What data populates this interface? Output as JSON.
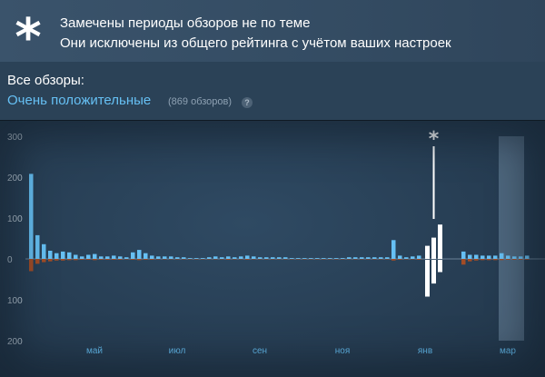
{
  "notice": {
    "icon": "asterisk-icon",
    "line1": "Замечены периоды обзоров не по теме",
    "line2": "Они исключены из общего рейтинга с учётом ваших настроек"
  },
  "summary": {
    "label": "Все обзоры:",
    "score": "Очень положительные",
    "count": "(869 обзоров)",
    "help": "?"
  },
  "colors": {
    "positive": "#66c0f4",
    "negative": "#a34c25",
    "offtopic": "#ffffff",
    "highlight": "#7e9ab1"
  },
  "chart_data": {
    "type": "bar",
    "y_tick_labels": [
      "300",
      "200",
      "100",
      "0",
      "100",
      "200"
    ],
    "y_ticks": [
      300,
      200,
      100,
      0,
      -100,
      -200
    ],
    "ylim": [
      -200,
      300
    ],
    "x_tick_labels": [
      "май",
      "июл",
      "сен",
      "ноя",
      "янв",
      "мар"
    ],
    "x_tick_positions": [
      10,
      23,
      36,
      49,
      62,
      75
    ],
    "annotation": "*",
    "series": [
      {
        "role": "positive",
        "values": [
          208,
          58,
          36,
          20,
          14,
          18,
          16,
          10,
          6,
          10,
          12,
          6,
          6,
          8,
          6,
          4,
          16,
          22,
          14,
          8,
          6,
          6,
          6,
          4,
          4,
          2,
          2,
          2,
          4,
          6,
          4,
          6,
          4,
          6,
          8,
          6,
          4,
          4,
          4,
          4,
          4,
          2,
          2,
          2,
          2,
          2,
          2,
          2,
          2,
          2,
          4,
          4,
          4,
          4,
          4,
          4,
          4,
          46,
          8,
          4,
          6,
          8,
          0,
          0,
          0,
          0,
          0,
          0,
          18,
          10,
          10,
          8,
          8,
          8,
          14,
          8,
          6,
          6,
          8
        ]
      },
      {
        "role": "negative",
        "values": [
          -30,
          -12,
          -8,
          -6,
          -4,
          -4,
          -3,
          -3,
          -2,
          -2,
          -3,
          -2,
          -2,
          -2,
          -2,
          -1,
          -2,
          -3,
          -2,
          -2,
          -1,
          -1,
          -1,
          -1,
          -1,
          -1,
          -1,
          -1,
          -1,
          -1,
          -1,
          -2,
          -1,
          -1,
          -2,
          -1,
          -1,
          -1,
          -1,
          -1,
          -1,
          -1,
          -1,
          -1,
          -1,
          -1,
          -1,
          -1,
          -1,
          -1,
          -1,
          -1,
          -1,
          -1,
          -1,
          -1,
          -1,
          -4,
          -2,
          -1,
          -1,
          -2,
          0,
          0,
          0,
          0,
          0,
          0,
          -14,
          -6,
          -4,
          -3,
          -3,
          -3,
          -3,
          -2,
          -2,
          -2,
          -2
        ]
      },
      {
        "role": "offtopic",
        "bars": [
          {
            "index": 62,
            "pos": 32,
            "neg": -90
          },
          {
            "index": 63,
            "pos": 52,
            "neg": -58
          },
          {
            "index": 64,
            "pos": 84,
            "neg": -30
          }
        ]
      }
    ],
    "highlight_range": [
      74,
      78
    ]
  }
}
